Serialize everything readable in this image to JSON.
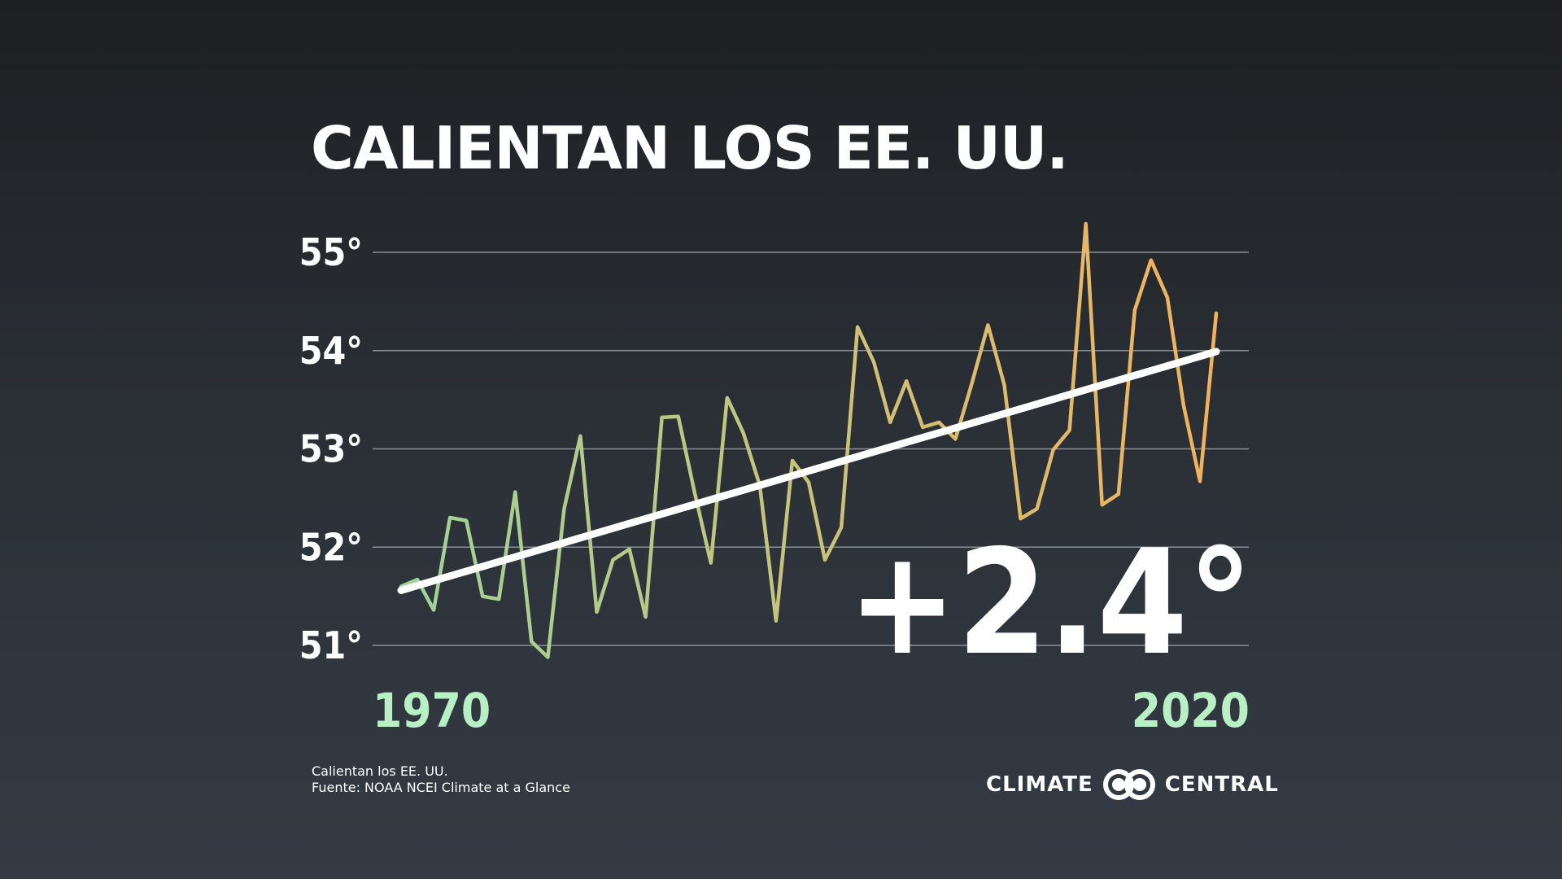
{
  "title": "CALIENTAN LOS EE. UU.",
  "change_label": "+2.4°",
  "footnote": {
    "line1": "Calientan los EE. UU.",
    "line2": "Fuente: NOAA NCEI Climate at a Glance"
  },
  "brand": {
    "left": "CLIMATE",
    "right": "CENTRAL"
  },
  "colors": {
    "early": "#9fd39a",
    "late": "#f2b25c",
    "trend": "#ffffff",
    "year_label": "#b8efc4",
    "grid": "#8a8f96"
  },
  "chart_data": {
    "type": "line",
    "title": "CALIENTAN LOS EE. UU.",
    "xlabel": "",
    "ylabel": "",
    "x_tick_labels": [
      "1970",
      "2020"
    ],
    "y_ticks": [
      51,
      52,
      53,
      54,
      55
    ],
    "y_tick_labels": [
      "51°",
      "52°",
      "53°",
      "54°",
      "55°"
    ],
    "ylim": [
      51,
      55
    ],
    "xlim": [
      1970,
      2020
    ],
    "grid": true,
    "series": [
      {
        "x": [
          1970,
          1971,
          1972,
          1973,
          1974,
          1975,
          1976,
          1977,
          1978,
          1979,
          1980,
          1981,
          1982,
          1983,
          1984,
          1985,
          1986,
          1987,
          1988,
          1989,
          1990,
          1991,
          1992,
          1993,
          1994,
          1995,
          1996,
          1997,
          1998,
          1999,
          2000,
          2001,
          2002,
          2003,
          2004,
          2005,
          2006,
          2007,
          2008,
          2009,
          2010,
          2011,
          2012,
          2013,
          2014,
          2015,
          2016,
          2017,
          2018,
          2019,
          2020
        ],
        "values": [
          51.6,
          51.67,
          51.36,
          52.3,
          52.27,
          51.5,
          51.47,
          52.56,
          51.04,
          50.88,
          52.39,
          53.13,
          51.34,
          51.87,
          51.98,
          51.29,
          53.32,
          53.33,
          52.56,
          51.84,
          53.52,
          53.16,
          52.63,
          51.25,
          52.88,
          52.66,
          51.87,
          52.2,
          54.24,
          53.88,
          53.27,
          53.69,
          53.22,
          53.27,
          53.1,
          53.66,
          54.26,
          53.65,
          52.29,
          52.39,
          52.99,
          53.19,
          55.29,
          52.43,
          52.54,
          54.41,
          54.92,
          54.54,
          53.44,
          52.67,
          54.38
        ]
      }
    ],
    "trend": {
      "values": [
        51.56,
        53.99
      ]
    }
  }
}
